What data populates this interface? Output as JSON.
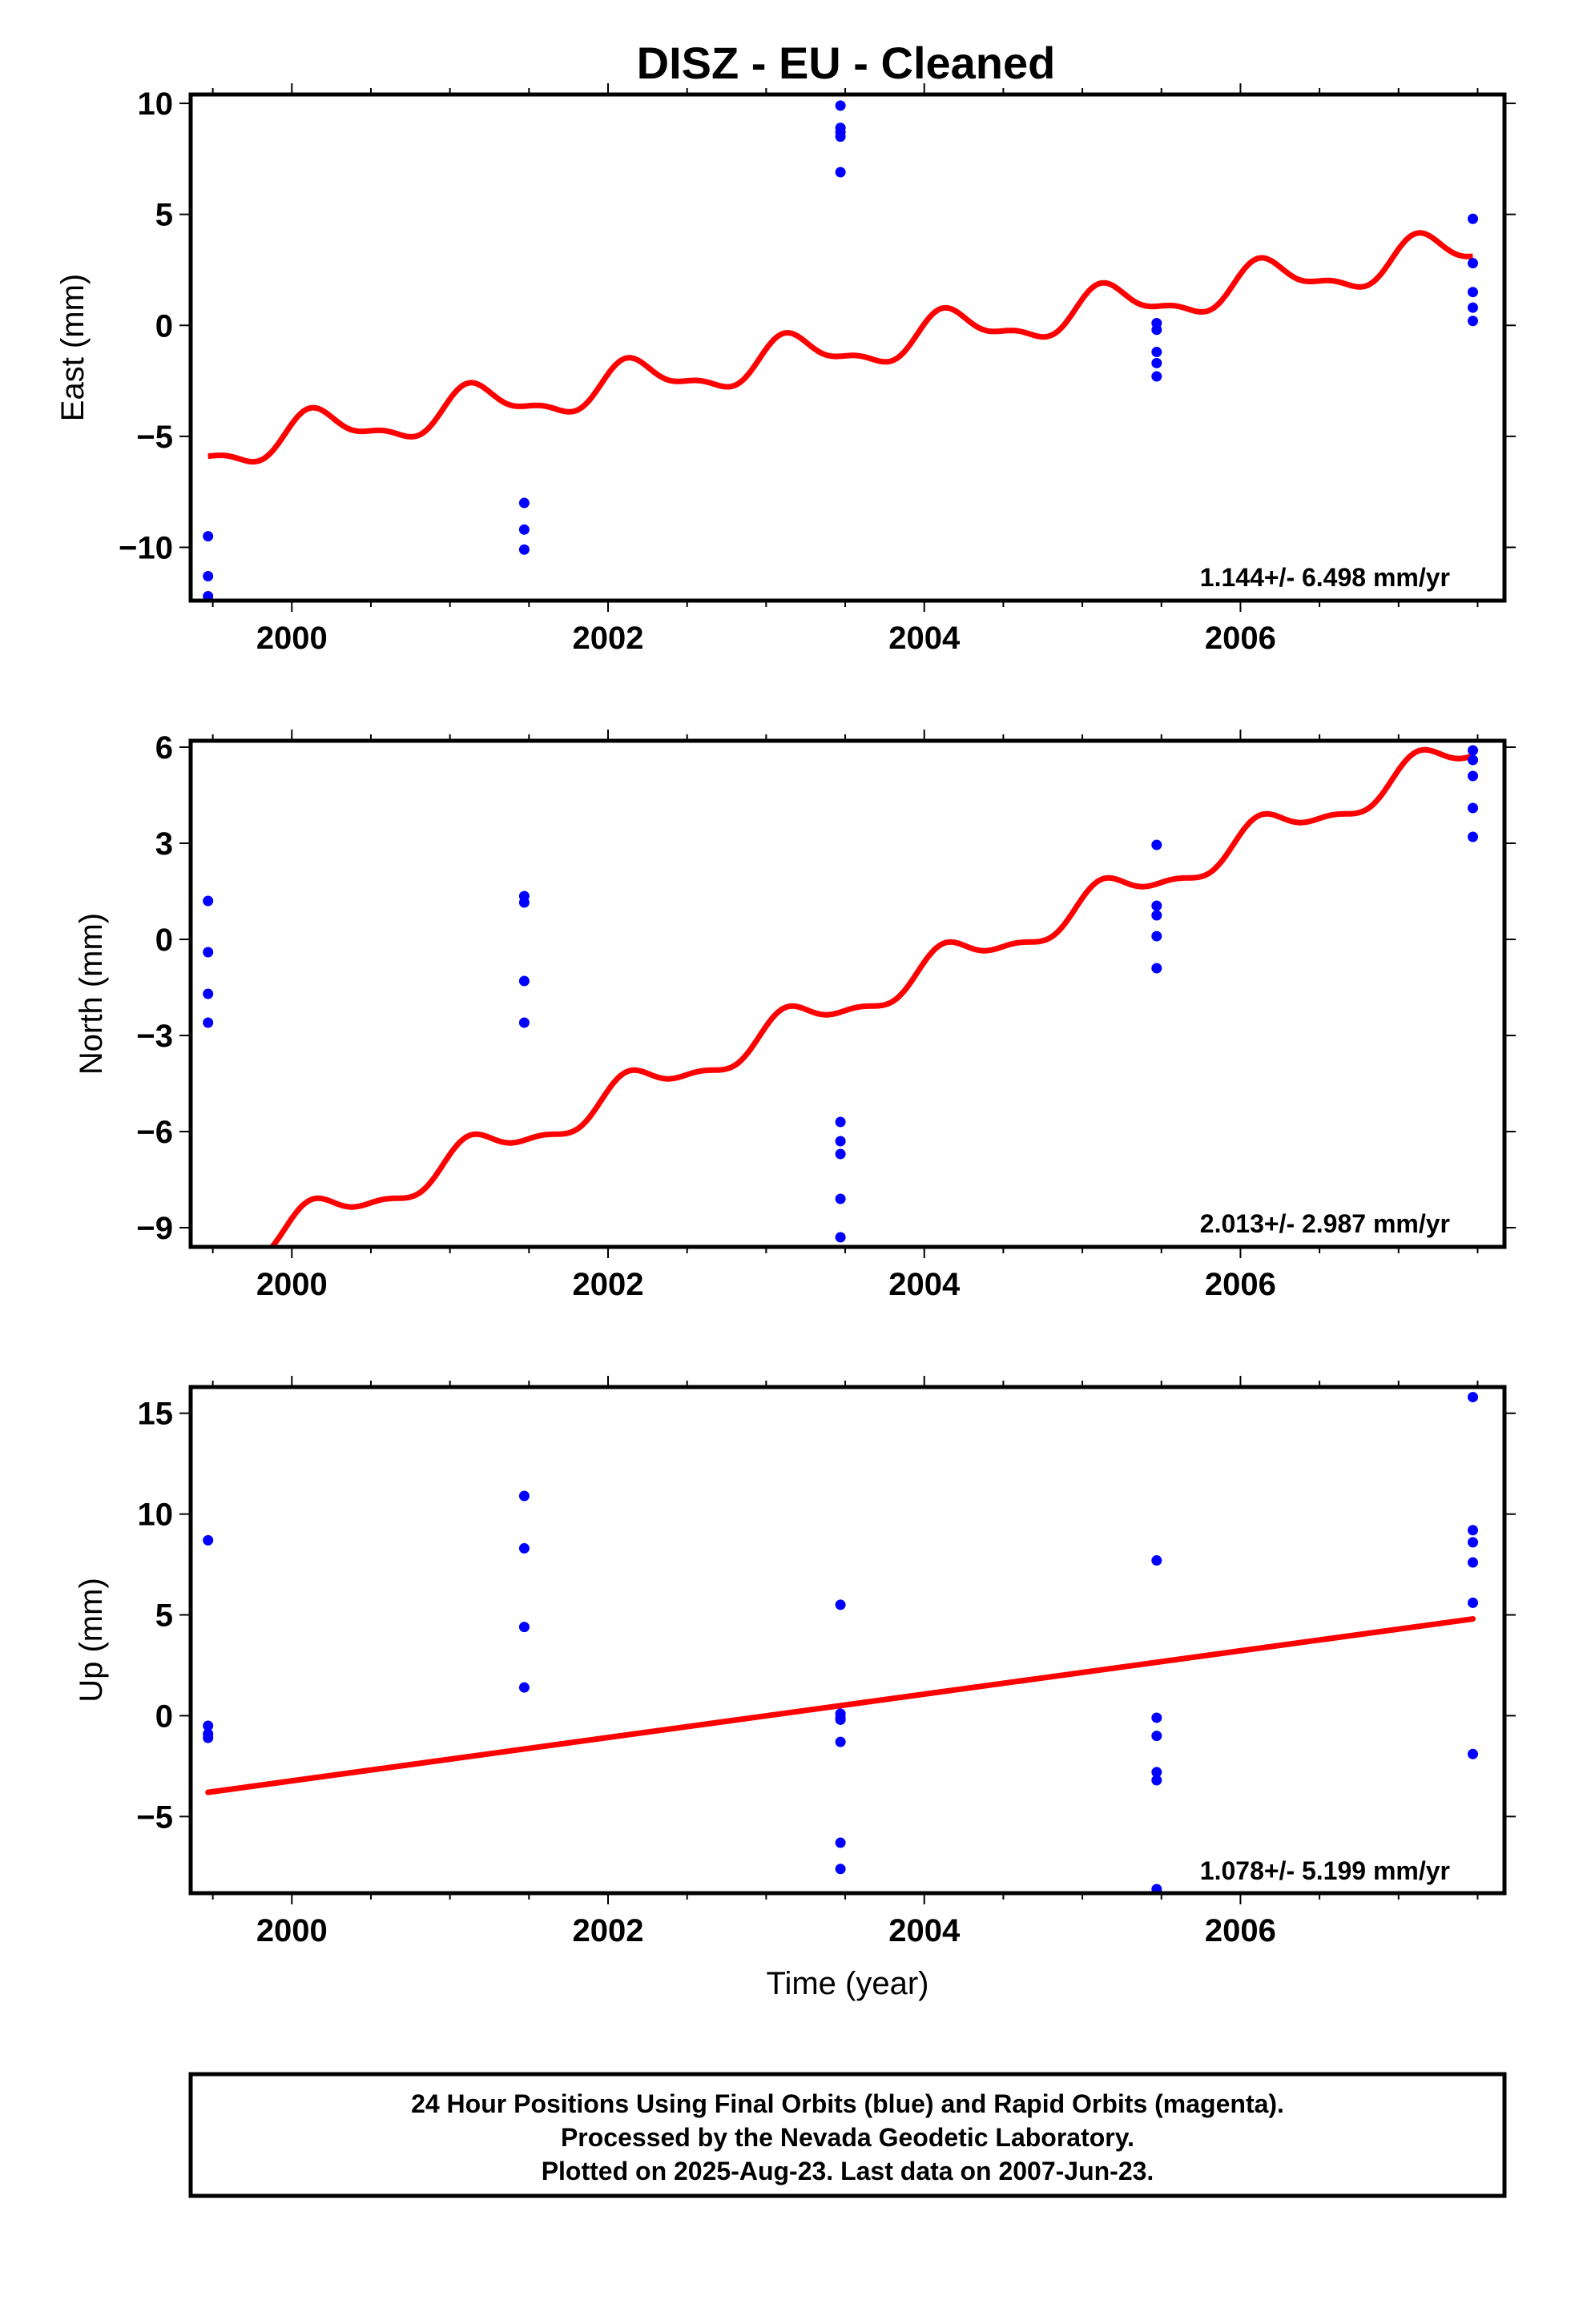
{
  "title": "DISZ  - EU - Cleaned",
  "colors": {
    "data": "#0000ff",
    "fit": "#ff0000",
    "frame": "#000000"
  },
  "chart_data": [
    {
      "type": "scatter",
      "panel": "east",
      "ylabel": "East (mm)",
      "xlim": [
        1999.36,
        2007.67
      ],
      "ylim": [
        -12.4,
        10.4
      ],
      "yticks": [
        10,
        5,
        0,
        -5,
        -10
      ],
      "ytick_labels": [
        "10",
        "5",
        "0",
        "−5",
        "−10"
      ],
      "xticks": [
        2000,
        2002,
        2004,
        2006
      ],
      "xtick_labels": [
        "2000",
        "2002",
        "2004",
        "2006"
      ],
      "rate_text": "1.144+/- 6.498 mm/yr",
      "series": [
        {
          "kind": "points",
          "x": [
            1999.47,
            1999.47,
            1999.47,
            2001.47,
            2001.47,
            2001.47,
            2003.47,
            2003.47,
            2003.47,
            2003.47,
            2003.47,
            2005.47,
            2005.47,
            2005.47,
            2005.47,
            2005.47,
            2007.47,
            2007.47,
            2007.47,
            2007.47,
            2007.47
          ],
          "y": [
            -9.5,
            -11.3,
            -12.2,
            -8.0,
            -9.2,
            -10.1,
            9.9,
            8.9,
            8.7,
            8.5,
            6.9,
            0.1,
            -0.2,
            -1.2,
            -1.7,
            -2.3,
            4.8,
            2.8,
            1.5,
            0.8,
            0.2
          ]
        },
        {
          "kind": "seasonal-fit",
          "x_start": 1999.47,
          "x_end": 2007.47,
          "y_start": -5.6,
          "y_end": 3.4,
          "annual_amplitude": 0.85,
          "semiannual_amplitude": 0.35
        }
      ]
    },
    {
      "type": "scatter",
      "panel": "north",
      "ylabel": "North (mm)",
      "xlim": [
        1999.36,
        2007.67
      ],
      "ylim": [
        -9.6,
        6.2
      ],
      "yticks": [
        6,
        3,
        0,
        -3,
        -6,
        -9
      ],
      "ytick_labels": [
        "6",
        "3",
        "0",
        "−3",
        "−6",
        "−9"
      ],
      "xticks": [
        2000,
        2002,
        2004,
        2006
      ],
      "xtick_labels": [
        "2000",
        "2002",
        "2004",
        "2006"
      ],
      "rate_text": "2.013+/- 2.987 mm/yr",
      "series": [
        {
          "kind": "points",
          "x": [
            1999.47,
            1999.47,
            1999.47,
            1999.47,
            2001.47,
            2001.47,
            2001.47,
            2001.47,
            2003.47,
            2003.47,
            2003.47,
            2003.47,
            2003.47,
            2005.47,
            2005.47,
            2005.47,
            2005.47,
            2005.47,
            2007.47,
            2007.47,
            2007.47,
            2007.47,
            2007.47
          ],
          "y": [
            1.2,
            -0.4,
            -1.7,
            -2.6,
            1.35,
            1.15,
            -1.3,
            -2.6,
            -5.7,
            -6.3,
            -6.7,
            -8.1,
            -9.3,
            2.95,
            1.05,
            0.75,
            0.1,
            -0.9,
            5.9,
            5.6,
            5.1,
            4.1,
            3.2
          ]
        },
        {
          "kind": "seasonal-fit",
          "x_start": 1999.47,
          "x_end": 2007.47,
          "y_start": -10.1,
          "y_end": 5.9,
          "annual_amplitude": 0.5,
          "semiannual_amplitude": 0.2
        }
      ]
    },
    {
      "type": "scatter",
      "panel": "up",
      "ylabel": "Up (mm)",
      "xlabel": "Time (year)",
      "xlim": [
        1999.36,
        2007.67
      ],
      "ylim": [
        -8.8,
        16.3
      ],
      "yticks": [
        15,
        10,
        5,
        0,
        -5
      ],
      "ytick_labels": [
        "15",
        "10",
        "5",
        "0",
        "−5"
      ],
      "xticks": [
        2000,
        2002,
        2004,
        2006
      ],
      "xtick_labels": [
        "2000",
        "2002",
        "2004",
        "2006"
      ],
      "rate_text": "1.078+/- 5.199 mm/yr",
      "series": [
        {
          "kind": "points",
          "x": [
            1999.47,
            1999.47,
            1999.47,
            1999.47,
            2001.47,
            2001.47,
            2001.47,
            2001.47,
            2003.47,
            2003.47,
            2003.47,
            2003.47,
            2003.47,
            2003.47,
            2003.47,
            2005.47,
            2005.47,
            2005.47,
            2005.47,
            2005.47,
            2005.47,
            2005.47,
            2007.47,
            2007.47,
            2007.47,
            2007.47,
            2007.47,
            2007.47
          ],
          "y": [
            8.7,
            -0.5,
            -0.9,
            -1.1,
            10.9,
            8.3,
            4.4,
            1.4,
            5.5,
            0.1,
            -0.1,
            -0.2,
            -1.3,
            -6.3,
            -7.6,
            7.7,
            -0.1,
            -1.0,
            -2.8,
            -3.2,
            -8.6,
            -8.8,
            15.8,
            9.2,
            8.6,
            7.6,
            5.6,
            -1.9
          ]
        },
        {
          "kind": "linear-fit",
          "x": [
            1999.47,
            2007.47
          ],
          "y": [
            -3.8,
            4.8
          ]
        }
      ]
    }
  ],
  "footer": {
    "line1": "24 Hour Positions Using Final Orbits (blue) and Rapid Orbits (magenta).",
    "line2": "Processed by the Nevada Geodetic Laboratory.",
    "line3": "Plotted on 2025-Aug-23. Last data on 2007-Jun-23."
  }
}
